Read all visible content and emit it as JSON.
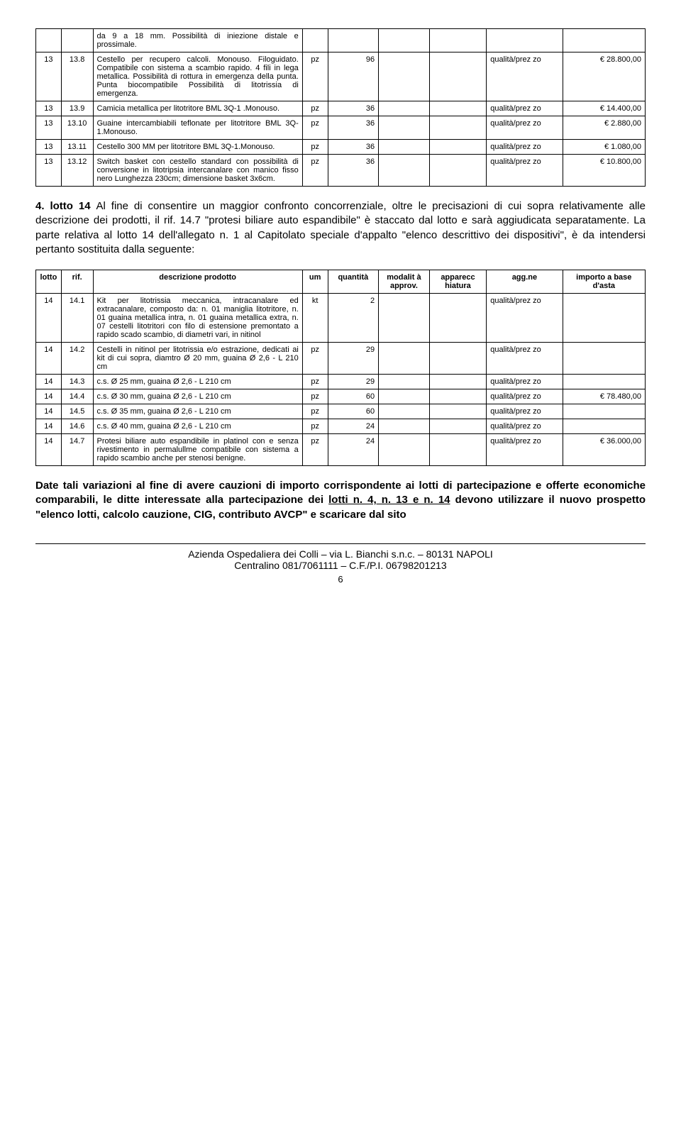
{
  "table1": {
    "rows": [
      {
        "lotto": "",
        "rif": "",
        "desc": "da 9 a 18 mm. Possibilità di iniezione distale e prossimale.",
        "um": "",
        "qty": "",
        "mod": "",
        "app": "",
        "agg": "",
        "imp": ""
      },
      {
        "lotto": "13",
        "rif": "13.8",
        "desc": "Cestello per recupero calcoli. Monouso. Filoguidato. Compatibile con sistema a scambio rapido. 4 fili in lega metallica. Possibilità di rottura in emergenza della punta. Punta biocompatibile Possibilità di litotrissia di emergenza.",
        "um": "pz",
        "qty": "96",
        "mod": "",
        "app": "",
        "agg": "qualità/prez zo",
        "imp": "€ 28.800,00"
      },
      {
        "lotto": "13",
        "rif": "13.9",
        "desc": "Camicia metallica per litotritore BML 3Q-1 .Monouso.",
        "um": "pz",
        "qty": "36",
        "mod": "",
        "app": "",
        "agg": "qualità/prez zo",
        "imp": "€ 14.400,00"
      },
      {
        "lotto": "13",
        "rif": "13.10",
        "desc": "Guaine intercambiabili teflonate per litotritore BML 3Q-1.Monouso.",
        "um": "pz",
        "qty": "36",
        "mod": "",
        "app": "",
        "agg": "qualità/prez zo",
        "imp": "€ 2.880,00"
      },
      {
        "lotto": "13",
        "rif": "13.11",
        "desc": "Cestello 300 MM per litotritore BML 3Q-1.Monouso.",
        "um": "pz",
        "qty": "36",
        "mod": "",
        "app": "",
        "agg": "qualità/prez zo",
        "imp": "€ 1.080,00"
      },
      {
        "lotto": "13",
        "rif": "13.12",
        "desc": "Switch basket con cestello standard con possibilità di conversione in litotripsia intercanalare con manico fisso nero Lunghezza 230cm; dimensione basket 3x6cm.",
        "um": "pz",
        "qty": "36",
        "mod": "",
        "app": "",
        "agg": "qualità/prez zo",
        "imp": "€ 10.800,00"
      }
    ]
  },
  "para1": {
    "prefix": "4. lotto 14 ",
    "text": "Al fine di consentire un maggior confronto concorrenziale, oltre le precisazioni di cui sopra relativamente alle descrizione dei prodotti, il rif. 14.7 \"protesi biliare auto espandibile\" è staccato dal lotto e sarà aggiudicata separatamente. La parte relativa al lotto 14 dell'allegato n. 1 al Capitolato speciale d'appalto \"elenco descrittivo dei dispositivi\", è da intendersi pertanto sostituita dalla seguente:"
  },
  "table2": {
    "headers": {
      "lotto": "lotto",
      "rif": "rif.",
      "desc": "descrizione prodotto",
      "um": "um",
      "qty": "quantità",
      "mod": "modalit à approv.",
      "app": "apparecc hiatura",
      "agg": "agg.ne",
      "imp": "importo a base d'asta"
    },
    "rows": [
      {
        "lotto": "14",
        "rif": "14.1",
        "desc": "Kit per litotrissia meccanica, intracanalare ed extracanalare, composto da: n. 01 maniglia litotritore, n. 01 guaina metallica intra, n. 01 guaina metallica extra, n. 07 cestelli litotritori con filo di estensione premontato a rapido scado scambio, di diametri vari, in nitinol",
        "um": "kt",
        "qty": "2",
        "mod": "",
        "app": "",
        "agg": "qualità/prez zo",
        "imp": ""
      },
      {
        "lotto": "14",
        "rif": "14.2",
        "desc": " Cestelli in nitinol per litotrissia e/o estrazione, dedicati ai kit di cui sopra, diamtro Ø 20 mm, guaina Ø 2,6 - L 210 cm",
        "um": "pz",
        "qty": "29",
        "mod": "",
        "app": "",
        "agg": "qualità/prez zo",
        "imp": ""
      },
      {
        "lotto": "14",
        "rif": "14.3",
        "desc": "c.s. Ø 25 mm, guaina Ø 2,6 - L 210 cm",
        "um": "pz",
        "qty": "29",
        "mod": "",
        "app": "",
        "agg": "qualità/prez zo",
        "imp": ""
      },
      {
        "lotto": "14",
        "rif": "14.4",
        "desc": "c.s. Ø 30 mm, guaina Ø 2,6 - L 210 cm",
        "um": "pz",
        "qty": "60",
        "mod": "",
        "app": "",
        "agg": "qualità/prez zo",
        "imp": "€ 78.480,00"
      },
      {
        "lotto": "14",
        "rif": "14.5",
        "desc": "c.s. Ø 35 mm, guaina Ø 2,6 - L 210 cm",
        "um": "pz",
        "qty": "60",
        "mod": "",
        "app": "",
        "agg": "qualità/prez zo",
        "imp": ""
      },
      {
        "lotto": "14",
        "rif": "14.6",
        "desc": "c.s. Ø 40 mm, guaina Ø 2,6 - L 210 cm",
        "um": "pz",
        "qty": "24",
        "mod": "",
        "app": "",
        "agg": "qualità/prez zo",
        "imp": ""
      },
      {
        "lotto": "14",
        "rif": "14.7",
        "desc": "Protesi biliare auto espandibile in platinol  con e senza rivestimento in permalullme compatibile con sistema a rapido scambio anche per stenosi benigne.",
        "um": "pz",
        "qty": "24",
        "mod": "",
        "app": "",
        "agg": "qualità/prez zo",
        "imp": "€ 36.000,00"
      }
    ]
  },
  "para2": {
    "text1": "Date tali variazioni al fine di avere cauzioni di importo corrispondente ai lotti di partecipazione e offerte economiche comparabili, le ditte interessate alla partecipazione dei ",
    "underline": "lotti n. 4, n. 13 e n. 14",
    "text2": " devono utilizzare il nuovo prospetto \"elenco lotti, calcolo cauzione, CIG, contributo AVCP\" e scaricare dal sito"
  },
  "footer": {
    "line1": "Azienda Ospedaliera dei Colli – via L. Bianchi s.n.c. – 80131 NAPOLI",
    "line2": "Centralino 081/7061111 – C.F./P.I. 06798201213",
    "page": "6"
  }
}
